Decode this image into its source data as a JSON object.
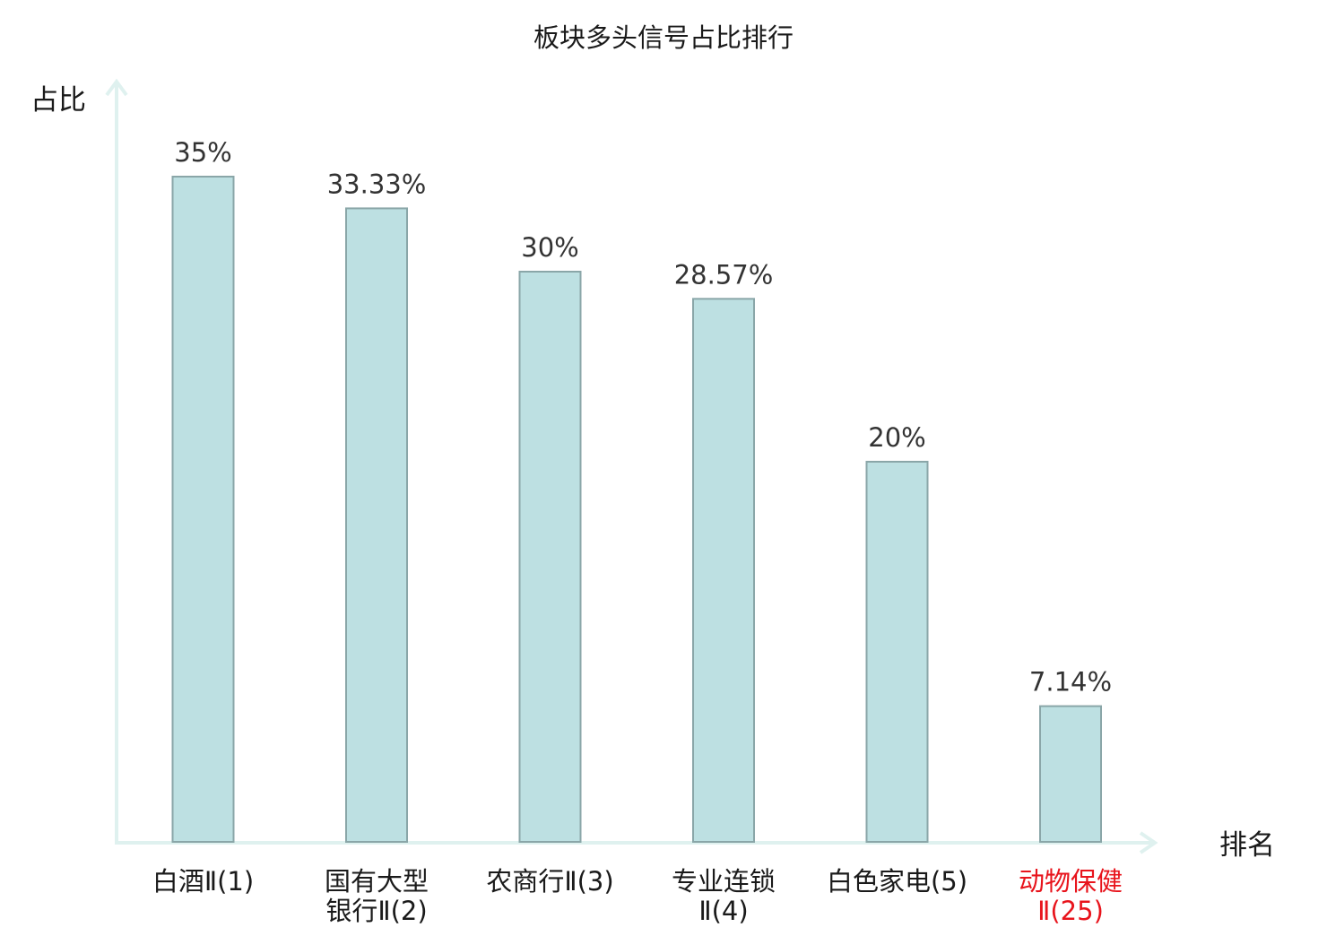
{
  "chart_data": {
    "type": "bar",
    "title": "板块多头信号占比排行",
    "ylabel": "占比",
    "xlabel": "排名",
    "categories": [
      [
        "白酒Ⅱ(1)"
      ],
      [
        "国有大型",
        "银行Ⅱ(2)"
      ],
      [
        "农商行Ⅱ(3)"
      ],
      [
        "专业连锁",
        "Ⅱ(4)"
      ],
      [
        "白色家电(5)"
      ],
      [
        "动物保健",
        "Ⅱ(25)"
      ]
    ],
    "values": [
      35,
      33.33,
      30,
      28.57,
      20,
      7.14
    ],
    "value_labels": [
      "35%",
      "33.33%",
      "30%",
      "28.57%",
      "20%",
      "7.14%"
    ],
    "highlight_index": 5,
    "ylim": [
      0,
      35
    ],
    "grid": false,
    "colors": {
      "bar_fill": "#bde0e2",
      "bar_stroke": "#8aa6a8",
      "axis": "#dff1ef",
      "label_text": "#333333",
      "highlight_text": "#e8141c"
    }
  }
}
